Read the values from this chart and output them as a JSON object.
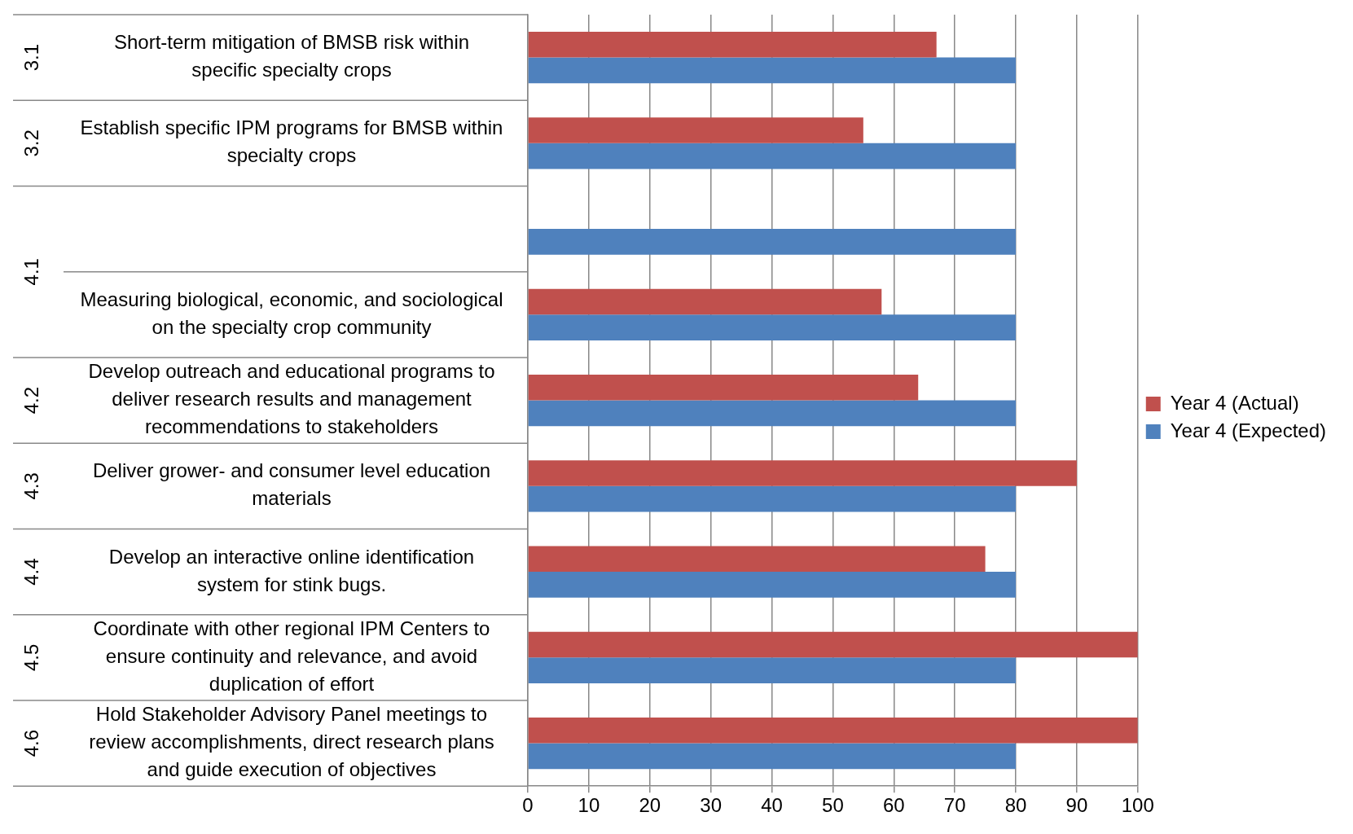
{
  "chart_data": {
    "type": "bar",
    "orientation": "horizontal",
    "categories": [
      "Short-term mitigation of BMSB risk within specific specialty crops",
      "Establish specific IPM programs for BMSB within specialty crops",
      null,
      "Measuring biological, economic, and sociological on the specialty crop community",
      "Develop outreach and educational programs to deliver research results and management recommendations to stakeholders",
      "Deliver grower- and consumer level education materials",
      "Develop an interactive online identification system for stink bugs.",
      "Coordinate with other regional IPM Centers to ensure continuity and relevance, and avoid duplication of effort",
      "Hold Stakeholder Advisory Panel meetings to review accomplishments, direct research plans and guide execution of objectives"
    ],
    "series": [
      {
        "name": "Year 4 (Actual)",
        "color": "#c0504d",
        "values": [
          67,
          55,
          null,
          58,
          64,
          90,
          75,
          100,
          100
        ]
      },
      {
        "name": "Year 4 (Expected)",
        "color": "#4f81bd",
        "values": [
          80,
          80,
          80,
          80,
          80,
          80,
          80,
          80,
          80
        ]
      }
    ],
    "xlim": [
      0,
      100
    ],
    "xticks": [
      0,
      10,
      20,
      30,
      40,
      50,
      60,
      70,
      80,
      90,
      100
    ],
    "grid": "x",
    "legend": "right",
    "annotations": [
      "3.1",
      "3.2",
      "4.1",
      "4.2",
      "4.3",
      "4.4",
      "4.5",
      "4.6"
    ]
  }
}
